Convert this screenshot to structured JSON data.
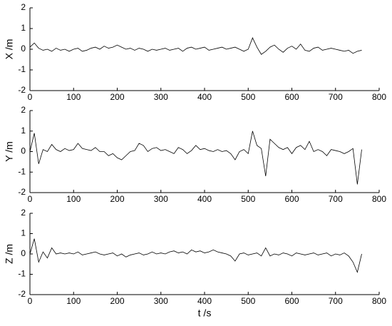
{
  "chart_data": [
    {
      "type": "line",
      "ylabel": "X /m",
      "xlim": [
        0,
        800
      ],
      "ylim": [
        -2,
        2
      ],
      "xticks": [
        0,
        100,
        200,
        300,
        400,
        500,
        600,
        700,
        800
      ],
      "yticks": [
        -2,
        -1,
        0,
        1,
        2
      ],
      "x": [
        0,
        10,
        20,
        30,
        40,
        50,
        60,
        70,
        80,
        90,
        100,
        110,
        120,
        130,
        140,
        150,
        160,
        170,
        180,
        190,
        200,
        210,
        220,
        230,
        240,
        250,
        260,
        270,
        280,
        290,
        300,
        310,
        320,
        330,
        340,
        350,
        360,
        370,
        380,
        390,
        400,
        410,
        420,
        430,
        440,
        450,
        460,
        470,
        480,
        490,
        500,
        510,
        520,
        530,
        540,
        550,
        560,
        570,
        580,
        590,
        600,
        610,
        620,
        630,
        640,
        650,
        660,
        670,
        680,
        690,
        700,
        710,
        720,
        730,
        740,
        750,
        760
      ],
      "series": [
        {
          "color": "#000000",
          "values": [
            0.1,
            0.3,
            0.05,
            -0.05,
            0.0,
            -0.1,
            0.05,
            -0.05,
            0.0,
            -0.1,
            0.0,
            0.05,
            -0.1,
            -0.05,
            0.05,
            0.1,
            0.0,
            0.15,
            0.05,
            0.1,
            0.2,
            0.1,
            0.0,
            0.05,
            -0.05,
            0.05,
            0.0,
            -0.1,
            0.0,
            -0.05,
            0.0,
            0.05,
            -0.05,
            0.0,
            0.05,
            -0.1,
            0.05,
            0.1,
            0.0,
            0.05,
            0.1,
            -0.05,
            0.0,
            0.05,
            0.1,
            0.0,
            0.05,
            0.1,
            0.0,
            -0.1,
            0.0,
            0.55,
            0.1,
            -0.25,
            -0.1,
            0.1,
            0.2,
            0.0,
            -0.15,
            0.05,
            0.15,
            0.0,
            0.25,
            -0.05,
            -0.1,
            0.05,
            0.1,
            -0.05,
            0.0,
            0.05,
            0.0,
            -0.05,
            -0.1,
            -0.05,
            -0.2,
            -0.1,
            -0.05
          ]
        }
      ]
    },
    {
      "type": "line",
      "ylabel": "Y /m",
      "xlim": [
        0,
        800
      ],
      "ylim": [
        -2,
        2
      ],
      "xticks": [
        0,
        100,
        200,
        300,
        400,
        500,
        600,
        700,
        800
      ],
      "yticks": [
        -2,
        -1,
        0,
        1,
        2
      ],
      "x": [
        0,
        10,
        20,
        30,
        40,
        50,
        60,
        70,
        80,
        90,
        100,
        110,
        120,
        130,
        140,
        150,
        160,
        170,
        180,
        190,
        200,
        210,
        220,
        230,
        240,
        250,
        260,
        270,
        280,
        290,
        300,
        310,
        320,
        330,
        340,
        350,
        360,
        370,
        380,
        390,
        400,
        410,
        420,
        430,
        440,
        450,
        460,
        470,
        480,
        490,
        500,
        510,
        520,
        530,
        540,
        550,
        560,
        570,
        580,
        590,
        600,
        610,
        620,
        630,
        640,
        650,
        660,
        670,
        680,
        690,
        700,
        710,
        720,
        730,
        740,
        750,
        760
      ],
      "series": [
        {
          "color": "#000000",
          "values": [
            0.0,
            0.9,
            -0.6,
            0.1,
            0.0,
            0.35,
            0.1,
            0.0,
            0.15,
            0.05,
            0.1,
            0.4,
            0.15,
            0.1,
            0.05,
            0.2,
            0.0,
            0.0,
            -0.2,
            -0.1,
            -0.3,
            -0.4,
            -0.2,
            0.0,
            0.05,
            0.4,
            0.3,
            0.0,
            0.15,
            0.2,
            0.05,
            0.1,
            0.0,
            -0.1,
            0.2,
            0.1,
            -0.1,
            0.05,
            0.3,
            0.1,
            0.15,
            0.05,
            0.0,
            0.1,
            0.0,
            0.05,
            -0.1,
            -0.4,
            0.0,
            0.1,
            -0.1,
            1.0,
            0.3,
            0.15,
            -1.2,
            0.6,
            0.4,
            0.2,
            0.1,
            0.2,
            -0.1,
            0.2,
            0.3,
            0.1,
            0.5,
            0.0,
            0.1,
            0.0,
            -0.2,
            0.1,
            0.05,
            0.0,
            -0.1,
            0.0,
            0.15,
            -1.6,
            0.1
          ]
        }
      ]
    },
    {
      "type": "line",
      "ylabel": "Z /m",
      "xlabel": "t /s",
      "xlim": [
        0,
        800
      ],
      "ylim": [
        -2,
        2
      ],
      "xticks": [
        0,
        100,
        200,
        300,
        400,
        500,
        600,
        700,
        800
      ],
      "yticks": [
        -2,
        -1,
        0,
        1,
        2
      ],
      "x": [
        0,
        10,
        20,
        30,
        40,
        50,
        60,
        70,
        80,
        90,
        100,
        110,
        120,
        130,
        140,
        150,
        160,
        170,
        180,
        190,
        200,
        210,
        220,
        230,
        240,
        250,
        260,
        270,
        280,
        290,
        300,
        310,
        320,
        330,
        340,
        350,
        360,
        370,
        380,
        390,
        400,
        410,
        420,
        430,
        440,
        450,
        460,
        470,
        480,
        490,
        500,
        510,
        520,
        530,
        540,
        550,
        560,
        570,
        580,
        590,
        600,
        610,
        620,
        630,
        640,
        650,
        660,
        670,
        680,
        690,
        700,
        710,
        720,
        730,
        740,
        750,
        760
      ],
      "series": [
        {
          "color": "#000000",
          "values": [
            0.0,
            0.75,
            -0.4,
            0.1,
            -0.2,
            0.3,
            0.0,
            0.05,
            0.0,
            0.05,
            0.0,
            0.1,
            -0.05,
            0.0,
            0.05,
            0.1,
            0.0,
            -0.05,
            0.0,
            0.05,
            -0.1,
            0.0,
            -0.15,
            -0.05,
            0.0,
            0.05,
            -0.05,
            0.0,
            0.1,
            0.0,
            0.05,
            0.0,
            0.1,
            0.15,
            0.05,
            0.1,
            0.0,
            0.2,
            0.1,
            0.15,
            0.05,
            0.1,
            0.2,
            0.1,
            0.05,
            0.0,
            -0.1,
            -0.35,
            0.0,
            0.05,
            -0.05,
            0.0,
            0.05,
            -0.1,
            0.3,
            -0.1,
            0.0,
            -0.05,
            0.05,
            0.0,
            -0.1,
            0.05,
            0.0,
            -0.05,
            0.0,
            0.05,
            -0.05,
            0.0,
            0.05,
            -0.1,
            0.0,
            -0.05,
            0.05,
            -0.1,
            -0.4,
            -0.9,
            0.0
          ]
        }
      ]
    }
  ]
}
